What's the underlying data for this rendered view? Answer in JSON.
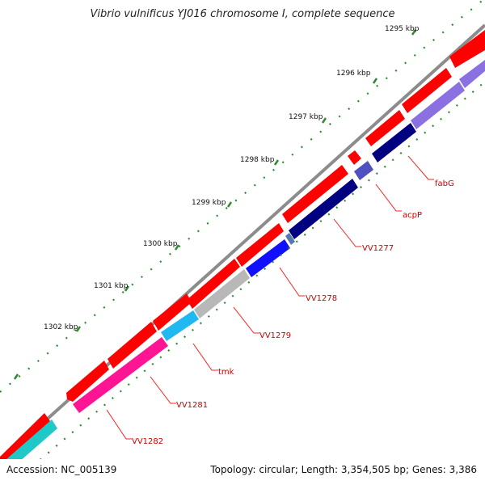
{
  "title": "Vibrio vulnificus YJ016 chromosome I, complete sequence",
  "accession_label": "Accession: NC_005139",
  "summary_label": "Topology: circular; Length: 3,354,505 bp; Genes: 3,386",
  "colors": {
    "backbone": "#808080",
    "forward_gene": "#ff0000",
    "tick": "#2e8b2e",
    "label": "#cc0000",
    "leader": "#ff0000"
  },
  "scale_labels": [
    "1295 kbp",
    "1296 kbp",
    "1297 kbp",
    "1298 kbp",
    "1299 kbp",
    "1300 kbp",
    "1301 kbp",
    "1302 kbp"
  ],
  "gene_labels": [
    "fabG",
    "acpP",
    "VV1277",
    "VV1278",
    "VV1279",
    "tmk",
    "VV1281",
    "VV1282"
  ]
}
